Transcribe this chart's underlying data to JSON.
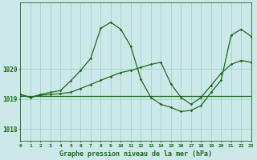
{
  "bg_color": "#cce8e8",
  "grid_color": "#99cccc",
  "line_color": "#1a6b1a",
  "title": "Graphe pression niveau de la mer (hPa)",
  "xlim": [
    0,
    23
  ],
  "ylim": [
    1017.6,
    1022.2
  ],
  "yticks": [
    1018,
    1019,
    1020
  ],
  "xticks": [
    0,
    1,
    2,
    3,
    4,
    5,
    6,
    7,
    8,
    9,
    10,
    11,
    12,
    13,
    14,
    15,
    16,
    17,
    18,
    19,
    20,
    21,
    22,
    23
  ],
  "series1_x": [
    0,
    23
  ],
  "series1_y": [
    1019.1,
    1019.1
  ],
  "series2_x": [
    0,
    1,
    2,
    3,
    4,
    5,
    6,
    7,
    8,
    9,
    10,
    11,
    12,
    13,
    14,
    15,
    16,
    17,
    18,
    19,
    20,
    21,
    22,
    23
  ],
  "series2_y": [
    1019.15,
    1019.05,
    1019.12,
    1019.15,
    1019.18,
    1019.22,
    1019.35,
    1019.48,
    1019.62,
    1019.75,
    1019.88,
    1019.95,
    1020.05,
    1020.15,
    1020.22,
    1019.5,
    1019.05,
    1018.82,
    1019.05,
    1019.45,
    1019.85,
    1020.15,
    1020.28,
    1020.22
  ],
  "series3_x": [
    0,
    1,
    2,
    3,
    4,
    5,
    6,
    7,
    8,
    9,
    10,
    11,
    12,
    13,
    14,
    15,
    16,
    17,
    18,
    19,
    20,
    21,
    22,
    23
  ],
  "series3_y": [
    1019.15,
    1019.05,
    1019.15,
    1019.22,
    1019.28,
    1019.6,
    1019.95,
    1020.35,
    1021.35,
    1021.55,
    1021.32,
    1020.75,
    1019.65,
    1019.05,
    1018.82,
    1018.72,
    1018.58,
    1018.62,
    1018.78,
    1019.22,
    1019.62,
    1021.12,
    1021.32,
    1021.08
  ]
}
